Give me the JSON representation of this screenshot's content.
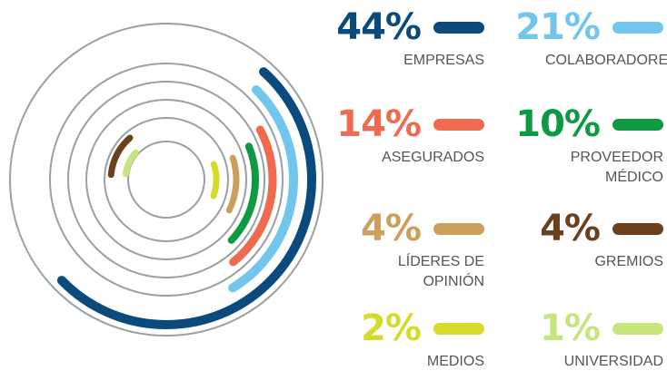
{
  "chart_data": {
    "type": "radial_bar",
    "categories": [
      "EMPRESAS",
      "COLABORADORES",
      "ASEGURADOS",
      "PROVEEDOR MÉDICO",
      "LÍDERES DE OPINIÓN",
      "GREMIOS",
      "MEDIOS",
      "UNIVERSIDAD"
    ],
    "values": [
      44,
      21,
      14,
      10,
      4,
      4,
      2,
      1
    ],
    "value_labels": [
      "44%",
      "21%",
      "14%",
      "10%",
      "4%",
      "4%",
      "2%",
      "1%"
    ],
    "colors": [
      "#0b4a7c",
      "#72c5ec",
      "#ef6a4f",
      "#0d9a42",
      "#cba05c",
      "#6b401c",
      "#d6da2a",
      "#c6e57c"
    ]
  }
}
